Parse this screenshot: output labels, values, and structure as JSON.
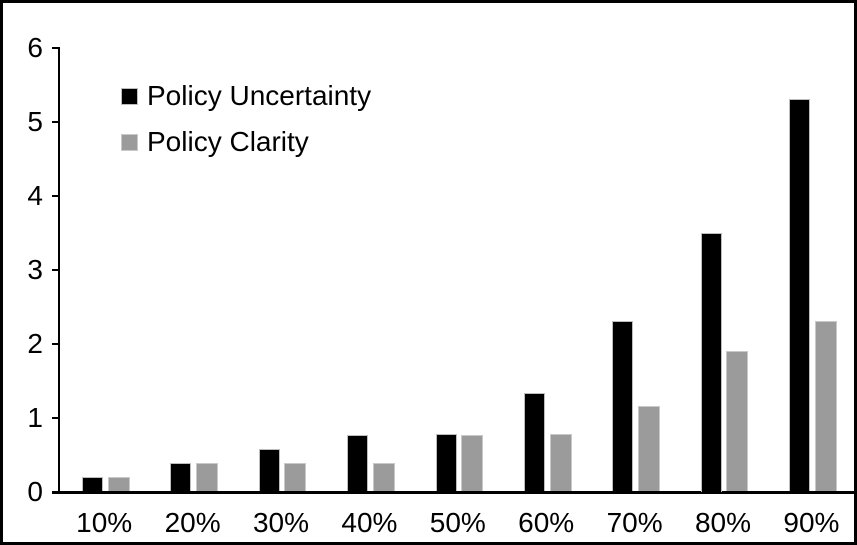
{
  "chart_data": {
    "type": "bar",
    "title": "",
    "xlabel": "",
    "ylabel": "",
    "categories": [
      "10%",
      "20%",
      "30%",
      "40%",
      "50%",
      "60%",
      "70%",
      "80%",
      "90%"
    ],
    "series": [
      {
        "name": "Policy Uncertainty",
        "color": "#000000",
        "border_color": "#bdbdbd",
        "values": [
          0.2,
          0.38,
          0.57,
          0.77,
          0.78,
          1.33,
          2.3,
          3.5,
          5.3
        ]
      },
      {
        "name": "Policy Clarity",
        "color": "#9b9b9b",
        "border_color": "#c9c9c9",
        "values": [
          0.2,
          0.38,
          0.38,
          0.38,
          0.77,
          0.78,
          1.15,
          1.9,
          2.3
        ]
      }
    ],
    "ylim": [
      0,
      6
    ],
    "yticks": [
      0,
      1,
      2,
      3,
      4,
      5,
      6
    ],
    "grid": false,
    "legend_position": "top-left-inside"
  },
  "colors": {
    "background": "#ffffff",
    "frame_border": "#000000",
    "axis": "#000000"
  }
}
